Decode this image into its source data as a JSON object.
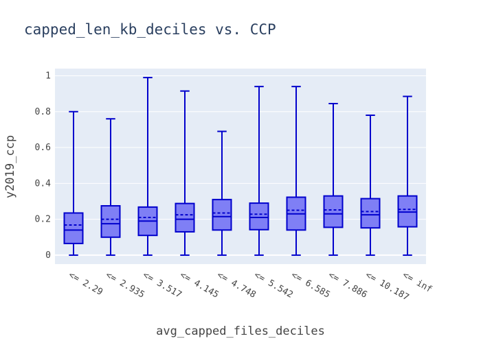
{
  "chart_data": {
    "type": "box",
    "title": "capped_len_kb_deciles vs. CCP",
    "xlabel": "avg_capped_files_deciles",
    "ylabel": "y2019_ccp",
    "ylim": [
      -0.05,
      1.04
    ],
    "yticks": [
      0,
      0.2,
      0.4,
      0.6,
      0.8,
      1
    ],
    "ytick_labels": [
      "0",
      "0.2",
      "0.4",
      "0.6",
      "0.8",
      "1"
    ],
    "grid": true,
    "colors": {
      "plot_bg": "#e5ecf6",
      "grid": "#ffffff",
      "box_line": "#0000cc",
      "box_fill": "#7f7ff5"
    },
    "categories": [
      "<= 2.29",
      "<= 2.935",
      "<= 3.517",
      "<= 4.145",
      "<= 4.748",
      "<= 5.542",
      "<= 6.585",
      "<= 7.886",
      "<= 10.187",
      "<= inf"
    ],
    "boxes": [
      {
        "min": 0.0,
        "q1": 0.065,
        "median": 0.14,
        "mean": 0.168,
        "q3": 0.235,
        "max": 0.8
      },
      {
        "min": 0.0,
        "q1": 0.1,
        "median": 0.175,
        "mean": 0.2,
        "q3": 0.275,
        "max": 0.76
      },
      {
        "min": 0.0,
        "q1": 0.11,
        "median": 0.19,
        "mean": 0.21,
        "q3": 0.268,
        "max": 0.99
      },
      {
        "min": 0.0,
        "q1": 0.13,
        "median": 0.2,
        "mean": 0.225,
        "q3": 0.288,
        "max": 0.915
      },
      {
        "min": 0.0,
        "q1": 0.14,
        "median": 0.215,
        "mean": 0.235,
        "q3": 0.31,
        "max": 0.69
      },
      {
        "min": 0.0,
        "q1": 0.142,
        "median": 0.21,
        "mean": 0.228,
        "q3": 0.29,
        "max": 0.94
      },
      {
        "min": 0.0,
        "q1": 0.14,
        "median": 0.23,
        "mean": 0.25,
        "q3": 0.323,
        "max": 0.94
      },
      {
        "min": 0.0,
        "q1": 0.155,
        "median": 0.23,
        "mean": 0.252,
        "q3": 0.33,
        "max": 0.845
      },
      {
        "min": 0.0,
        "q1": 0.152,
        "median": 0.225,
        "mean": 0.243,
        "q3": 0.315,
        "max": 0.78
      },
      {
        "min": 0.0,
        "q1": 0.158,
        "median": 0.24,
        "mean": 0.255,
        "q3": 0.33,
        "max": 0.885
      }
    ]
  }
}
